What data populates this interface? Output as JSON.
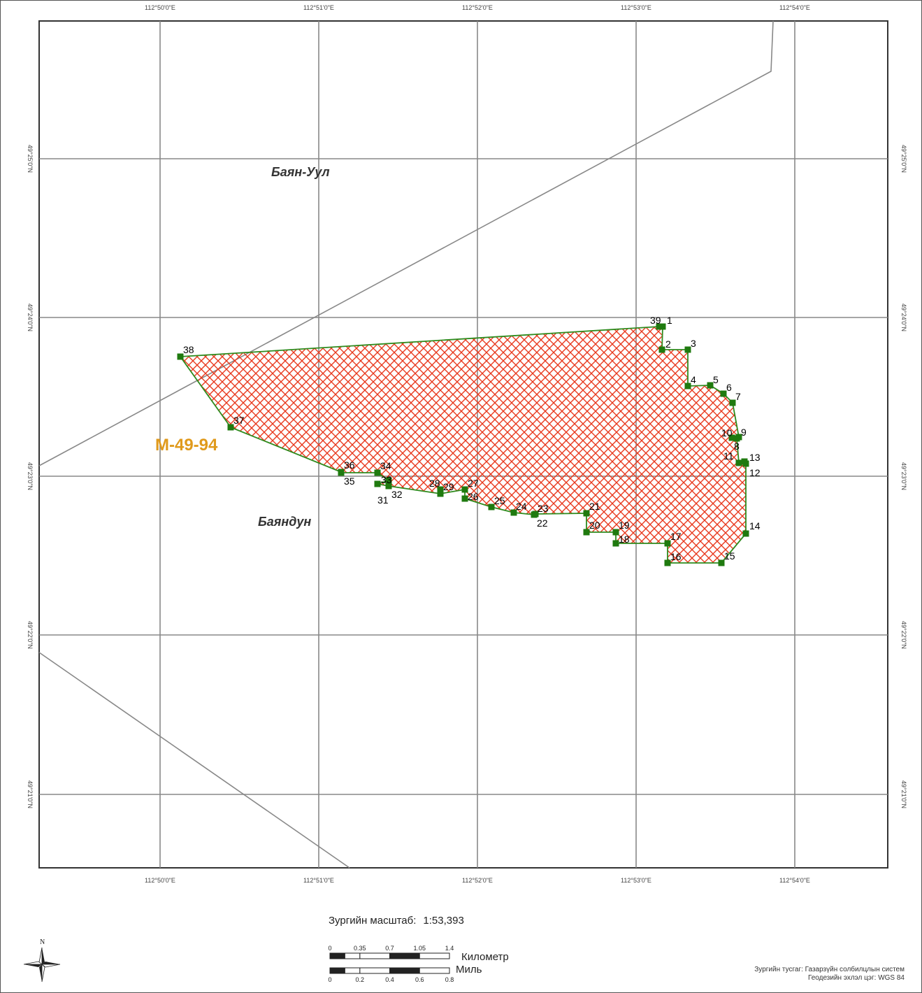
{
  "map": {
    "lon_ticks": [
      "112°50'0\"E",
      "112°51'0\"E",
      "112°52'0\"E",
      "112°53'0\"E",
      "112°54'0\"E"
    ],
    "lat_ticks": [
      "49°25'0\"N",
      "49°24'0\"N",
      "49°23'0\"N",
      "49°22'0\"N",
      "49°21'0\"N"
    ],
    "place_names": [
      "Баян-Уул",
      "Баяндун"
    ],
    "sheet_label": "M-49-94",
    "fill_color": "#e8391d",
    "border_color": "#2e8b1e",
    "vertex_color": "#1f7a0f",
    "points": [
      {
        "id": "1"
      },
      {
        "id": "2"
      },
      {
        "id": "3"
      },
      {
        "id": "4"
      },
      {
        "id": "5"
      },
      {
        "id": "6"
      },
      {
        "id": "7"
      },
      {
        "id": "8"
      },
      {
        "id": "9"
      },
      {
        "id": "10"
      },
      {
        "id": "11"
      },
      {
        "id": "12"
      },
      {
        "id": "13"
      },
      {
        "id": "14"
      },
      {
        "id": "15"
      },
      {
        "id": "16"
      },
      {
        "id": "17"
      },
      {
        "id": "18"
      },
      {
        "id": "19"
      },
      {
        "id": "20"
      },
      {
        "id": "21"
      },
      {
        "id": "22"
      },
      {
        "id": "23"
      },
      {
        "id": "24"
      },
      {
        "id": "25"
      },
      {
        "id": "26"
      },
      {
        "id": "27"
      },
      {
        "id": "28"
      },
      {
        "id": "29"
      },
      {
        "id": "30"
      },
      {
        "id": "31"
      },
      {
        "id": "32"
      },
      {
        "id": "33"
      },
      {
        "id": "34"
      },
      {
        "id": "35"
      },
      {
        "id": "36"
      },
      {
        "id": "37"
      },
      {
        "id": "38"
      },
      {
        "id": "39"
      }
    ]
  },
  "scale": {
    "label": "Зургийн масштаб:",
    "value": "1:53,393",
    "km_unit": "Километр",
    "mile_unit": "Миль",
    "km_ticks": [
      "0",
      "0.35",
      "0.7",
      "1.05",
      "1.4"
    ],
    "mile_ticks": [
      "0",
      "0.2",
      "0.4",
      "0.6",
      "0.8"
    ]
  },
  "north_label": "N",
  "credits": {
    "author": "Зургийн тусгаг: Газарзүйн солбилцлын систем",
    "datum": "Геодезийн эхлэл цэг: WGS 84"
  }
}
